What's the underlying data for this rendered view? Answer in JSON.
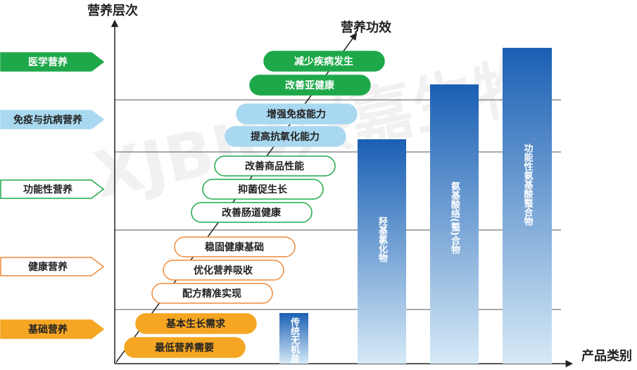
{
  "watermark": "XJBIO兴嘉生物",
  "axes": {
    "y_title": "营养层次",
    "x_title": "产品类别",
    "diagonal_title": "营养功效"
  },
  "levels": [
    "医学营养",
    "免疫与抗病营养",
    "功能性营养",
    "健康营养",
    "基础营养"
  ],
  "effects": [
    "减少疾病发生",
    "改善亚健康",
    "增强免疫能力",
    "提高抗氧化能力",
    "改善商品性能",
    "抑菌促生长",
    "改善肠道健康",
    "稳固健康基础",
    "优化营养吸收",
    "配方精准实现",
    "基本生长需求",
    "最低营养需要"
  ],
  "products": [
    "传统无机盐",
    "羟基氯化物",
    "氨基酸络(螯)合物",
    "功能性氨基酸螯合物"
  ]
}
